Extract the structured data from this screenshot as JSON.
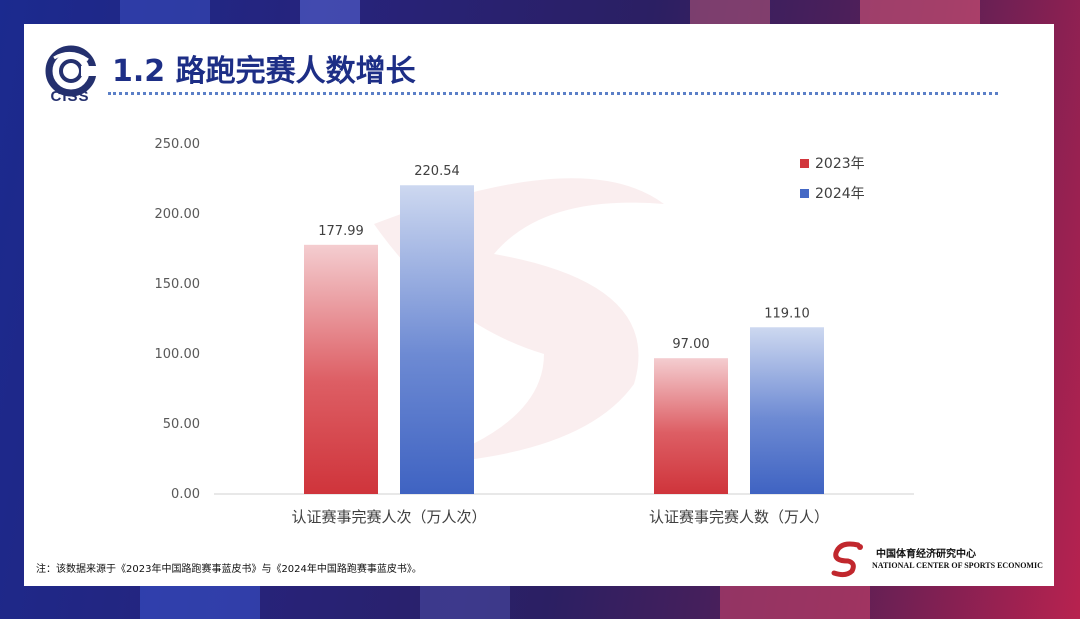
{
  "page": {
    "title": "1.2 路跑完赛人数增长",
    "logo_text": "CISS",
    "footnote": "注：该数据来源于《2023年中国路跑赛事蓝皮书》与《2024年中国路跑赛事蓝皮书》。",
    "org_name_cn": "中国体育经济研究中心",
    "org_name_en": "NATIONAL CENTER OF SPORTS ECONOMIC",
    "colors": {
      "title": "#1d2e86",
      "series_2023": "#d2363c",
      "series_2024": "#4468c5"
    }
  },
  "chart_data": {
    "type": "bar",
    "categories": [
      "认证赛事完赛人次（万人次）",
      "认证赛事完赛人数（万人）"
    ],
    "series": [
      {
        "name": "2023年",
        "values": [
          177.99,
          97.0
        ]
      },
      {
        "name": "2024年",
        "values": [
          220.54,
          119.1
        ]
      }
    ],
    "value_labels": [
      [
        "177.99",
        "97.00"
      ],
      [
        "220.54",
        "119.10"
      ]
    ],
    "y_ticks": [
      "0.00",
      "50.00",
      "100.00",
      "150.00",
      "200.00",
      "250.00"
    ],
    "ylim": [
      0,
      250
    ],
    "legend_position": "top-right",
    "grid": false
  }
}
